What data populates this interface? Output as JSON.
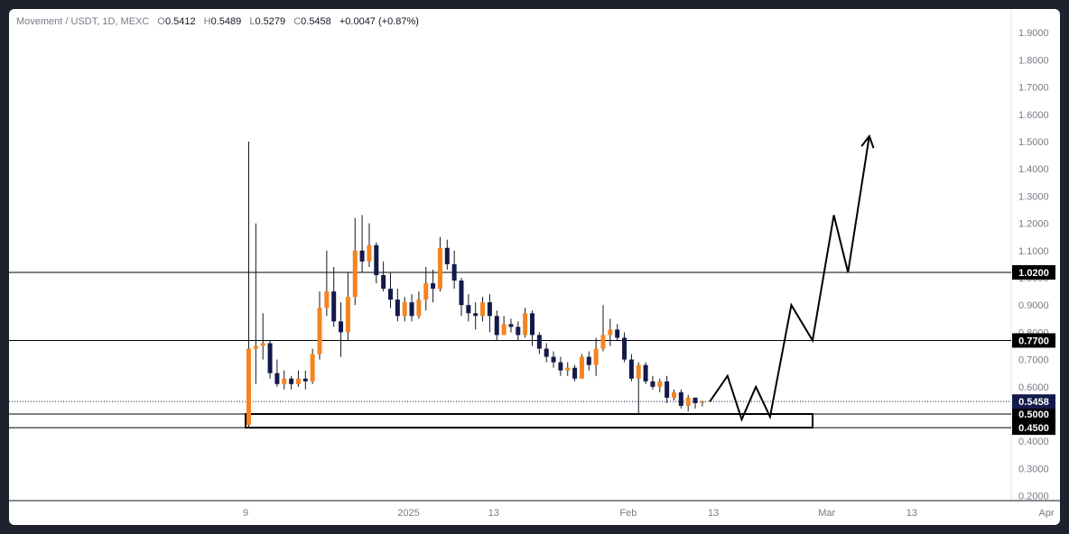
{
  "header": {
    "symbol": "Movement / USDT, 1D, MEXC",
    "o_label": "O",
    "o_value": "0.5412",
    "h_label": "H",
    "h_value": "0.5489",
    "l_label": "L",
    "l_value": "0.5279",
    "c_label": "C",
    "c_value": "0.5458",
    "change": "+0.0047 (+0.87%)"
  },
  "colors": {
    "up": "#f5841f",
    "down": "#131a4a",
    "line": "#000000",
    "badge_dark": "#000000",
    "badge_price": "#131a4a"
  },
  "chart_data": {
    "type": "candlestick",
    "y_ticks": [
      "1.9000",
      "1.8000",
      "1.7000",
      "1.6000",
      "1.5000",
      "1.4000",
      "1.3000",
      "1.2000",
      "1.1000",
      "1.0000",
      "0.9000",
      "0.8000",
      "0.7000",
      "0.6000",
      "0.5000",
      "0.4000",
      "0.3000",
      "0.2000"
    ],
    "x_ticks": [
      {
        "label": "9",
        "day": 0
      },
      {
        "label": "2025",
        "day": 23
      },
      {
        "label": "13",
        "day": 35
      },
      {
        "label": "Feb",
        "day": 54
      },
      {
        "label": "13",
        "day": 66
      },
      {
        "label": "Mar",
        "day": 82
      },
      {
        "label": "13",
        "day": 94
      },
      {
        "label": "Apr",
        "day": 113
      }
    ],
    "candles": [
      [
        0.46,
        0.74,
        1.5,
        0.45
      ],
      [
        0.74,
        0.75,
        1.2,
        0.61
      ],
      [
        0.75,
        0.76,
        0.87,
        0.7
      ],
      [
        0.76,
        0.65,
        0.77,
        0.63
      ],
      [
        0.65,
        0.61,
        0.7,
        0.6
      ],
      [
        0.61,
        0.63,
        0.66,
        0.59
      ],
      [
        0.63,
        0.61,
        0.64,
        0.59
      ],
      [
        0.61,
        0.63,
        0.66,
        0.6
      ],
      [
        0.63,
        0.62,
        0.66,
        0.59
      ],
      [
        0.62,
        0.72,
        0.74,
        0.61
      ],
      [
        0.72,
        0.89,
        0.95,
        0.7
      ],
      [
        0.89,
        0.95,
        1.1,
        0.86
      ],
      [
        0.95,
        0.84,
        1.04,
        0.82
      ],
      [
        0.84,
        0.8,
        0.91,
        0.71
      ],
      [
        0.8,
        0.93,
        1.02,
        0.77
      ],
      [
        0.93,
        1.1,
        1.22,
        0.9
      ],
      [
        1.1,
        1.06,
        1.23,
        1.02
      ],
      [
        1.06,
        1.12,
        1.2,
        1.04
      ],
      [
        1.12,
        1.01,
        1.13,
        0.98
      ],
      [
        1.01,
        0.96,
        1.06,
        0.95
      ],
      [
        0.96,
        0.92,
        1.02,
        0.89
      ],
      [
        0.92,
        0.86,
        0.96,
        0.84
      ],
      [
        0.86,
        0.91,
        0.93,
        0.84
      ],
      [
        0.91,
        0.86,
        0.94,
        0.84
      ],
      [
        0.86,
        0.92,
        0.95,
        0.85
      ],
      [
        0.92,
        0.98,
        1.04,
        0.88
      ],
      [
        0.98,
        0.96,
        1.03,
        0.91
      ],
      [
        0.96,
        1.11,
        1.15,
        0.95
      ],
      [
        1.11,
        1.05,
        1.14,
        1.03
      ],
      [
        1.05,
        0.99,
        1.1,
        0.96
      ],
      [
        0.99,
        0.9,
        1.0,
        0.86
      ],
      [
        0.9,
        0.87,
        0.94,
        0.84
      ],
      [
        0.87,
        0.86,
        0.91,
        0.81
      ],
      [
        0.86,
        0.91,
        0.93,
        0.84
      ],
      [
        0.91,
        0.86,
        0.94,
        0.8
      ],
      [
        0.86,
        0.79,
        0.88,
        0.77
      ],
      [
        0.79,
        0.83,
        0.86,
        0.79
      ],
      [
        0.83,
        0.82,
        0.85,
        0.8
      ],
      [
        0.82,
        0.79,
        0.84,
        0.77
      ],
      [
        0.79,
        0.87,
        0.89,
        0.78
      ],
      [
        0.87,
        0.79,
        0.88,
        0.75
      ],
      [
        0.79,
        0.74,
        0.8,
        0.72
      ],
      [
        0.74,
        0.71,
        0.76,
        0.69
      ],
      [
        0.71,
        0.69,
        0.73,
        0.67
      ],
      [
        0.69,
        0.66,
        0.71,
        0.64
      ],
      [
        0.66,
        0.67,
        0.69,
        0.64
      ],
      [
        0.67,
        0.63,
        0.68,
        0.62
      ],
      [
        0.63,
        0.71,
        0.72,
        0.63
      ],
      [
        0.71,
        0.68,
        0.73,
        0.66
      ],
      [
        0.68,
        0.74,
        0.78,
        0.64
      ],
      [
        0.74,
        0.79,
        0.9,
        0.73
      ],
      [
        0.79,
        0.81,
        0.85,
        0.75
      ],
      [
        0.81,
        0.78,
        0.83,
        0.77
      ],
      [
        0.78,
        0.7,
        0.8,
        0.69
      ],
      [
        0.7,
        0.63,
        0.72,
        0.62
      ],
      [
        0.63,
        0.68,
        0.69,
        0.5
      ],
      [
        0.68,
        0.62,
        0.69,
        0.61
      ],
      [
        0.62,
        0.6,
        0.64,
        0.59
      ],
      [
        0.6,
        0.62,
        0.63,
        0.58
      ],
      [
        0.62,
        0.56,
        0.64,
        0.54
      ],
      [
        0.56,
        0.58,
        0.59,
        0.55
      ],
      [
        0.58,
        0.53,
        0.59,
        0.52
      ],
      [
        0.53,
        0.56,
        0.57,
        0.51
      ],
      [
        0.56,
        0.54,
        0.56,
        0.52
      ],
      [
        0.5412,
        0.5458,
        0.5489,
        0.5279
      ]
    ],
    "levels": [
      {
        "value": 1.02,
        "label": "1.0200"
      },
      {
        "value": 0.77,
        "label": "0.7700"
      },
      {
        "value": 0.5,
        "label": "0.5000"
      },
      {
        "value": 0.45,
        "label": "0.4500"
      }
    ],
    "last_price": {
      "value": 0.5458,
      "label": "0.5458"
    },
    "zone": {
      "top": 0.5,
      "bottom": 0.45,
      "start_day": 0,
      "end_day": 80
    },
    "projection": [
      [
        65.5,
        0.5458
      ],
      [
        68,
        0.64
      ],
      [
        70,
        0.48
      ],
      [
        72,
        0.6
      ],
      [
        74,
        0.49
      ],
      [
        77,
        0.9
      ],
      [
        80,
        0.77
      ],
      [
        83,
        1.23
      ],
      [
        85,
        1.02
      ],
      [
        88,
        1.52
      ]
    ]
  }
}
